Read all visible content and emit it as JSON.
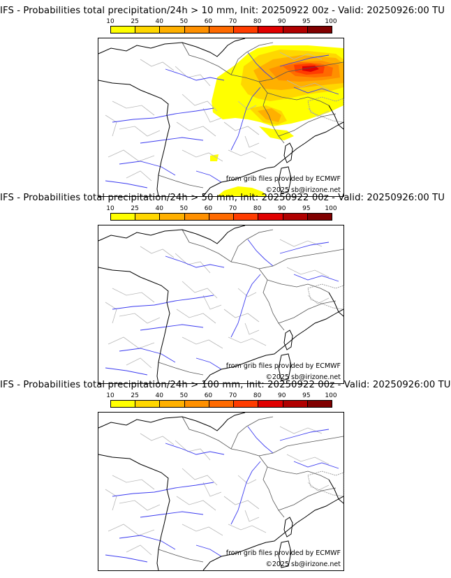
{
  "panels": [
    {
      "title": "IFS - Probabilities total precipitation/24h > 10 mm, Init: 20250922 00z - Valid: 20250926:00 TU",
      "credit_source": "from grib files provided by ECMWF",
      "credit_copyright": "©2025 sb@irizone.net"
    },
    {
      "title": "IFS - Probabilities total precipitation/24h > 50 mm, Init: 20250922 00z - Valid: 20250926:00 TU",
      "credit_source": "from grib files provided by ECMWF",
      "credit_copyright": "©2025 sb@irizone.net"
    },
    {
      "title": "IFS - Probabilities total precipitation/24h > 100 mm, Init: 20250922 00z - Valid: 20250926:00 TU",
      "credit_source": "from grib files provided by ECMWF",
      "credit_copyright": "©2025 sb@irizone.net"
    }
  ],
  "colorbar": {
    "ticks": [
      "10",
      "25",
      "40",
      "50",
      "60",
      "70",
      "80",
      "90",
      "95",
      "100"
    ],
    "colors": [
      "#ffff00",
      "#ffd700",
      "#ffb000",
      "#ff9000",
      "#ff6a00",
      "#ff3c00",
      "#e00000",
      "#b00000",
      "#800000"
    ]
  }
}
